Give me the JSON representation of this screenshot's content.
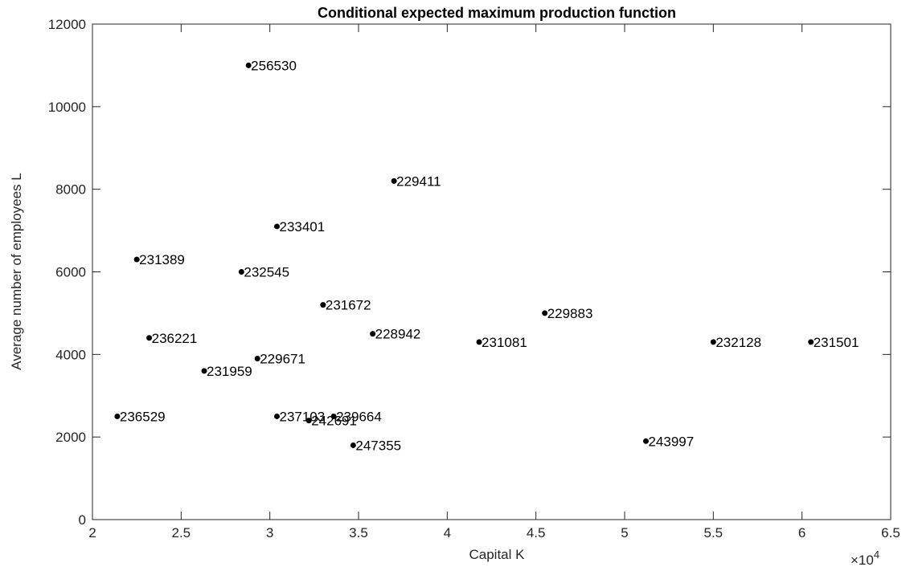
{
  "chart_data": {
    "type": "scatter",
    "title": "Conditional expected maximum production function",
    "xlabel": "Capital K",
    "ylabel": "Average number of employees L",
    "x_exponent_label": "×10",
    "x_exponent_power": "4",
    "xlim": [
      20000,
      65000
    ],
    "ylim": [
      0,
      12000
    ],
    "x_ticks": [
      20000,
      25000,
      30000,
      35000,
      40000,
      45000,
      50000,
      55000,
      60000,
      65000
    ],
    "x_tick_labels": [
      "2",
      "2.5",
      "3",
      "3.5",
      "4",
      "4.5",
      "5",
      "5.5",
      "6",
      "6.5"
    ],
    "y_ticks": [
      0,
      2000,
      4000,
      6000,
      8000,
      10000,
      12000
    ],
    "y_tick_labels": [
      "0",
      "2000",
      "4000",
      "6000",
      "8000",
      "10000",
      "12000"
    ],
    "grid": false,
    "marker_color": "#000000",
    "points": [
      {
        "x": 28800,
        "y": 11000,
        "label": "256530"
      },
      {
        "x": 37000,
        "y": 8200,
        "label": "229411"
      },
      {
        "x": 30400,
        "y": 7100,
        "label": "233401"
      },
      {
        "x": 22500,
        "y": 6300,
        "label": "231389"
      },
      {
        "x": 28400,
        "y": 6000,
        "label": "232545"
      },
      {
        "x": 33000,
        "y": 5200,
        "label": "231672"
      },
      {
        "x": 45500,
        "y": 5000,
        "label": "229883"
      },
      {
        "x": 35800,
        "y": 4500,
        "label": "228942"
      },
      {
        "x": 23200,
        "y": 4400,
        "label": "236221"
      },
      {
        "x": 41800,
        "y": 4300,
        "label": "231081"
      },
      {
        "x": 55000,
        "y": 4300,
        "label": "232128"
      },
      {
        "x": 60500,
        "y": 4300,
        "label": "231501"
      },
      {
        "x": 29300,
        "y": 3900,
        "label": "229671"
      },
      {
        "x": 26300,
        "y": 3600,
        "label": "231959"
      },
      {
        "x": 21400,
        "y": 2500,
        "label": "236529"
      },
      {
        "x": 30400,
        "y": 2500,
        "label": "237103"
      },
      {
        "x": 33600,
        "y": 2500,
        "label": "239664"
      },
      {
        "x": 32200,
        "y": 2400,
        "label": "242691"
      },
      {
        "x": 34700,
        "y": 1800,
        "label": "247355"
      },
      {
        "x": 51200,
        "y": 1900,
        "label": "243997"
      }
    ]
  }
}
